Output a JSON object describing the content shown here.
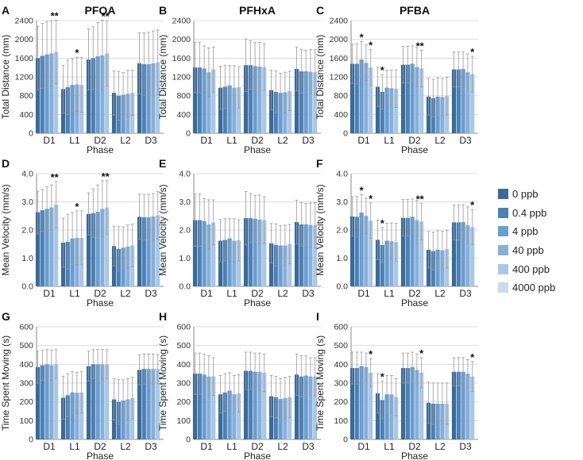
{
  "palette": [
    "#3c6a96",
    "#4d80b5",
    "#6a9dd0",
    "#87afda",
    "#a9c7e7",
    "#c9dcf1"
  ],
  "legend": [
    "0 ppb",
    "0.4 ppb",
    "4 ppb",
    "40 ppb",
    "400 ppb",
    "4000 ppb"
  ],
  "chart_data": [
    {
      "type": "bar",
      "panel_letter": "A",
      "title": "PFOA",
      "ylabel": "Total Distance (mm)",
      "xlabel": "Phase",
      "categories": [
        "D1",
        "L1",
        "D2",
        "L2",
        "D3"
      ],
      "ylim": [
        0,
        2400
      ],
      "yticks": [
        0,
        400,
        800,
        1200,
        1600,
        2000,
        2400
      ],
      "values": [
        [
          1600,
          1650,
          1680,
          1700,
          1730
        ],
        [
          940,
          980,
          1030,
          1040,
          1030
        ],
        [
          1570,
          1600,
          1640,
          1660,
          1700
        ],
        [
          860,
          800,
          820,
          840,
          860
        ],
        [
          1490,
          1470,
          1470,
          1490,
          1510
        ]
      ],
      "errors": [
        [
          680,
          690,
          700,
          700,
          680
        ],
        [
          510,
          580,
          560,
          580,
          580
        ],
        [
          650,
          670,
          720,
          750,
          700
        ],
        [
          470,
          520,
          470,
          500,
          480
        ],
        [
          650,
          670,
          680,
          690,
          690
        ]
      ],
      "significance": [
        [
          "**",
          4
        ],
        [
          "*",
          3
        ],
        [
          "**",
          4
        ]
      ]
    },
    {
      "type": "bar",
      "panel_letter": "B",
      "title": "PFHxA",
      "ylabel": "Total Distance (mm)",
      "xlabel": "Phase",
      "categories": [
        "D1",
        "L1",
        "D2",
        "L2",
        "D3"
      ],
      "ylim": [
        0,
        2400
      ],
      "yticks": [
        0,
        400,
        800,
        1200,
        1600,
        2000,
        2400
      ],
      "values": [
        [
          1400,
          1400,
          1380,
          1300,
          1360
        ],
        [
          970,
          990,
          1020,
          970,
          980
        ],
        [
          1450,
          1450,
          1430,
          1420,
          1410
        ],
        [
          920,
          880,
          860,
          870,
          900
        ],
        [
          1370,
          1320,
          1320,
          1310,
          1300
        ]
      ],
      "errors": [
        [
          540,
          540,
          480,
          520,
          480
        ],
        [
          460,
          460,
          420,
          470,
          440
        ],
        [
          560,
          520,
          500,
          520,
          500
        ],
        [
          420,
          450,
          420,
          430,
          420
        ],
        [
          470,
          470,
          450,
          470,
          480
        ]
      ],
      "significance": []
    },
    {
      "type": "bar",
      "panel_letter": "C",
      "title": "PFBA",
      "ylabel": "Total Distance (mm)",
      "xlabel": "Phase",
      "categories": [
        "D1",
        "L1",
        "D2",
        "L2",
        "D3"
      ],
      "ylim": [
        0,
        2400
      ],
      "yticks": [
        0,
        400,
        800,
        1200,
        1600,
        2000,
        2400
      ],
      "values": [
        [
          1480,
          1480,
          1570,
          1500,
          1400
        ],
        [
          990,
          880,
          970,
          960,
          950
        ],
        [
          1460,
          1460,
          1480,
          1410,
          1380
        ],
        [
          780,
          750,
          780,
          770,
          790
        ],
        [
          1360,
          1360,
          1370,
          1300,
          1260
        ]
      ],
      "errors": [
        [
          420,
          430,
          380,
          380,
          380
        ],
        [
          420,
          370,
          370,
          390,
          400
        ],
        [
          390,
          390,
          380,
          420,
          390
        ],
        [
          390,
          400,
          400,
          400,
          400
        ],
        [
          370,
          370,
          370,
          390,
          380
        ]
      ],
      "significance": [
        [
          "*",
          2
        ],
        [
          "*",
          4
        ],
        [
          "*",
          1
        ],
        [
          "**",
          4
        ],
        [
          "*",
          4
        ]
      ]
    },
    {
      "type": "bar",
      "panel_letter": "D",
      "title": "",
      "ylabel": "Mean Velocity (mm/s)",
      "xlabel": "Phase",
      "categories": [
        "D1",
        "L1",
        "D2",
        "L2",
        "D3"
      ],
      "ylim": [
        0,
        4
      ],
      "yticks": [
        0,
        1,
        2,
        3,
        4
      ],
      "ytick_labels": [
        "0.0",
        "1.0",
        "2.0",
        "3.0",
        "4.0"
      ],
      "values": [
        [
          2.63,
          2.7,
          2.75,
          2.8,
          2.9
        ],
        [
          1.55,
          1.58,
          1.7,
          1.72,
          1.72
        ],
        [
          2.57,
          2.6,
          2.65,
          2.75,
          2.8
        ],
        [
          1.43,
          1.33,
          1.37,
          1.41,
          1.45
        ],
        [
          2.47,
          2.45,
          2.45,
          2.48,
          2.52
        ]
      ],
      "errors": [
        [
          0.75,
          0.74,
          0.78,
          0.8,
          0.82
        ],
        [
          0.87,
          0.98,
          0.92,
          0.96,
          0.96
        ],
        [
          0.75,
          0.86,
          0.95,
          1.0,
          0.95
        ],
        [
          0.71,
          0.79,
          0.74,
          0.77,
          0.76
        ],
        [
          0.8,
          0.8,
          0.82,
          0.82,
          0.84
        ]
      ],
      "significance": [
        [
          "**",
          4
        ],
        [
          "*",
          3
        ],
        [
          "**",
          4
        ]
      ]
    },
    {
      "type": "bar",
      "panel_letter": "E",
      "title": "",
      "ylabel": "Mean Velocity (mm/s)",
      "xlabel": "Phase",
      "categories": [
        "D1",
        "L1",
        "D2",
        "L2",
        "D3"
      ],
      "ylim": [
        0,
        4
      ],
      "yticks": [
        0,
        1,
        2,
        3,
        4
      ],
      "ytick_labels": [
        "0.0",
        "1.0",
        "2.0",
        "3.0",
        "4.0"
      ],
      "values": [
        [
          2.35,
          2.35,
          2.32,
          2.2,
          2.27
        ],
        [
          1.62,
          1.65,
          1.7,
          1.62,
          1.63
        ],
        [
          2.42,
          2.42,
          2.4,
          2.37,
          2.35
        ],
        [
          1.53,
          1.47,
          1.45,
          1.45,
          1.5
        ],
        [
          2.28,
          2.2,
          2.2,
          2.18,
          2.17
        ]
      ],
      "errors": [
        [
          0.93,
          0.93,
          0.8,
          0.87,
          0.8
        ],
        [
          0.75,
          0.75,
          0.7,
          0.78,
          0.73
        ],
        [
          0.95,
          0.87,
          0.83,
          0.87,
          0.83
        ],
        [
          0.7,
          0.75,
          0.7,
          0.72,
          0.7
        ],
        [
          0.78,
          0.78,
          0.75,
          0.78,
          0.8
        ]
      ],
      "significance": []
    },
    {
      "type": "bar",
      "panel_letter": "F",
      "title": "",
      "ylabel": "Mean Velocity (mm/s)",
      "xlabel": "Phase",
      "categories": [
        "D1",
        "L1",
        "D2",
        "L2",
        "D3"
      ],
      "ylim": [
        0,
        4
      ],
      "yticks": [
        0,
        1,
        2,
        3,
        4
      ],
      "ytick_labels": [
        "0.0",
        "1.0",
        "2.0",
        "3.0",
        "4.0"
      ],
      "values": [
        [
          2.48,
          2.47,
          2.62,
          2.5,
          2.33
        ],
        [
          1.65,
          1.47,
          1.62,
          1.6,
          1.57
        ],
        [
          2.43,
          2.43,
          2.47,
          2.35,
          2.3
        ],
        [
          1.3,
          1.25,
          1.3,
          1.28,
          1.32
        ],
        [
          2.27,
          2.27,
          2.28,
          2.17,
          2.1
        ]
      ],
      "errors": [
        [
          0.7,
          0.72,
          0.63,
          0.63,
          0.63
        ],
        [
          0.7,
          0.62,
          0.62,
          0.65,
          0.67
        ],
        [
          0.65,
          0.65,
          0.63,
          0.7,
          0.65
        ],
        [
          0.65,
          0.67,
          0.67,
          0.67,
          0.67
        ],
        [
          0.62,
          0.62,
          0.62,
          0.65,
          0.63
        ]
      ],
      "significance": [
        [
          "*",
          2
        ],
        [
          "*",
          4
        ],
        [
          "*",
          1
        ],
        [
          "**",
          4
        ],
        [
          "*",
          4
        ]
      ]
    },
    {
      "type": "bar",
      "panel_letter": "G",
      "title": "",
      "ylabel": "Time Spent Moving (s)",
      "xlabel": "Phase",
      "categories": [
        "D1",
        "L1",
        "D2",
        "L2",
        "D3"
      ],
      "ylim": [
        0,
        600
      ],
      "yticks": [
        0,
        100,
        200,
        300,
        400,
        500,
        600
      ],
      "values": [
        [
          385,
          395,
          400,
          395,
          400
        ],
        [
          222,
          235,
          250,
          248,
          250
        ],
        [
          390,
          400,
          400,
          400,
          400
        ],
        [
          213,
          200,
          207,
          213,
          220
        ],
        [
          370,
          375,
          375,
          375,
          375
        ]
      ],
      "errors": [
        [
          85,
          80,
          78,
          80,
          78
        ],
        [
          115,
          115,
          110,
          110,
          110
        ],
        [
          80,
          78,
          80,
          80,
          78
        ],
        [
          110,
          120,
          110,
          110,
          110
        ],
        [
          80,
          80,
          80,
          80,
          78
        ]
      ],
      "significance": []
    },
    {
      "type": "bar",
      "panel_letter": "H",
      "title": "",
      "ylabel": "Time Spent Moving (s)",
      "xlabel": "Phase",
      "categories": [
        "D1",
        "L1",
        "D2",
        "L2",
        "D3"
      ],
      "ylim": [
        0,
        600
      ],
      "yticks": [
        0,
        100,
        200,
        300,
        400,
        500,
        600
      ],
      "values": [
        [
          350,
          350,
          345,
          335,
          335
        ],
        [
          240,
          250,
          260,
          240,
          245
        ],
        [
          365,
          365,
          360,
          360,
          355
        ],
        [
          230,
          225,
          215,
          220,
          225
        ],
        [
          345,
          335,
          340,
          335,
          335
        ]
      ],
      "errors": [
        [
          110,
          110,
          110,
          110,
          100
        ],
        [
          100,
          100,
          95,
          100,
          100
        ],
        [
          100,
          100,
          100,
          100,
          100
        ],
        [
          110,
          110,
          110,
          110,
          110
        ],
        [
          110,
          110,
          105,
          100,
          100
        ]
      ],
      "significance": []
    },
    {
      "type": "bar",
      "panel_letter": "I",
      "title": "",
      "ylabel": "Time Spent Moving (s)",
      "xlabel": "Phase",
      "categories": [
        "D1",
        "L1",
        "D2",
        "L2",
        "D3"
      ],
      "ylim": [
        0,
        600
      ],
      "yticks": [
        0,
        100,
        200,
        300,
        400,
        500,
        600
      ],
      "values": [
        [
          380,
          380,
          390,
          385,
          355
        ],
        [
          245,
          210,
          240,
          240,
          225
        ],
        [
          380,
          380,
          385,
          370,
          355
        ],
        [
          195,
          190,
          190,
          190,
          190
        ],
        [
          360,
          360,
          360,
          350,
          335
        ]
      ],
      "errors": [
        [
          85,
          85,
          75,
          75,
          75
        ],
        [
          105,
          100,
          100,
          100,
          100
        ],
        [
          80,
          80,
          80,
          85,
          80
        ],
        [
          110,
          110,
          110,
          110,
          110
        ],
        [
          75,
          75,
          75,
          75,
          80
        ]
      ],
      "significance": [
        [
          "*",
          4
        ],
        [
          "*",
          1
        ],
        [
          "*",
          4
        ],
        [
          "*",
          4
        ]
      ]
    }
  ]
}
